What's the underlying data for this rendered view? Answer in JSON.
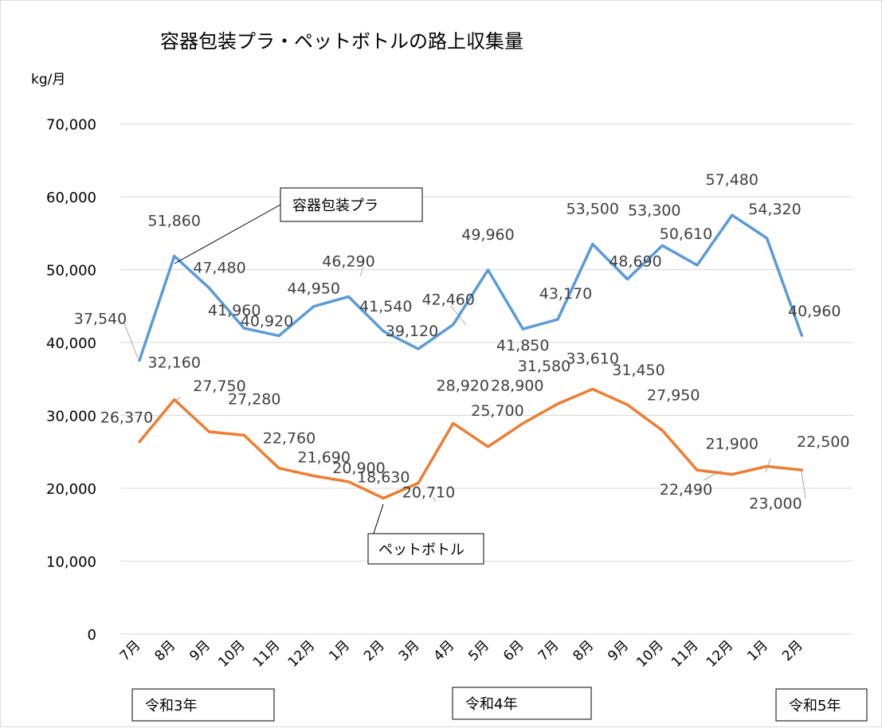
{
  "chart_data": {
    "type": "line",
    "title": "容器包装プラ・ペットボトルの路上収集量",
    "ylabel": "kg/月",
    "ylim": [
      0,
      70000
    ],
    "yticks": [
      "0",
      "10,000",
      "20,000",
      "30,000",
      "40,000",
      "50,000",
      "60,000",
      "70,000"
    ],
    "categories": [
      "7月",
      "8月",
      "9月",
      "10月",
      "11月",
      "12月",
      "1月",
      "2月",
      "3月",
      "4月",
      "5月",
      "6月",
      "7月",
      "8月",
      "9月",
      "10月",
      "11月",
      "12月",
      "1月",
      "2月"
    ],
    "series": [
      {
        "name": "容器包装プラ",
        "color": "#5b9bd5",
        "values": [
          37540,
          51860,
          47480,
          41960,
          40920,
          44950,
          46290,
          41540,
          39120,
          42460,
          49960,
          41850,
          43170,
          53500,
          48690,
          53300,
          50610,
          57480,
          54320,
          40960
        ],
        "labels": [
          "37,540",
          "51,860",
          "47,480",
          "41,960",
          "40,920",
          "44,950",
          "46,290",
          "41,540",
          "39,120",
          "42,460",
          "49,960",
          "41,850",
          "43,170",
          "53,500",
          "48,690",
          "53,300",
          "50,610",
          "57,480",
          "54,320",
          "40,960"
        ]
      },
      {
        "name": "ペットボトル",
        "color": "#ed7d31",
        "values": [
          26370,
          32160,
          27750,
          27280,
          22760,
          21690,
          20900,
          18630,
          20710,
          28920,
          25700,
          28900,
          31580,
          33610,
          31450,
          27950,
          22490,
          21900,
          23000,
          22500
        ],
        "labels": [
          "26,370",
          "32,160",
          "27,750",
          "27,280",
          "22,760",
          "21,690",
          "20,900",
          "18,630",
          "20,710",
          "28,920",
          "25,700",
          "28,900",
          "31,580",
          "33,610",
          "31,450",
          "27,950",
          "22,490",
          "21,900",
          "23,000",
          "22,500"
        ]
      }
    ],
    "eras": [
      "令和3年",
      "令和4年",
      "令和5年"
    ],
    "grid": true,
    "legend": "callouts"
  }
}
